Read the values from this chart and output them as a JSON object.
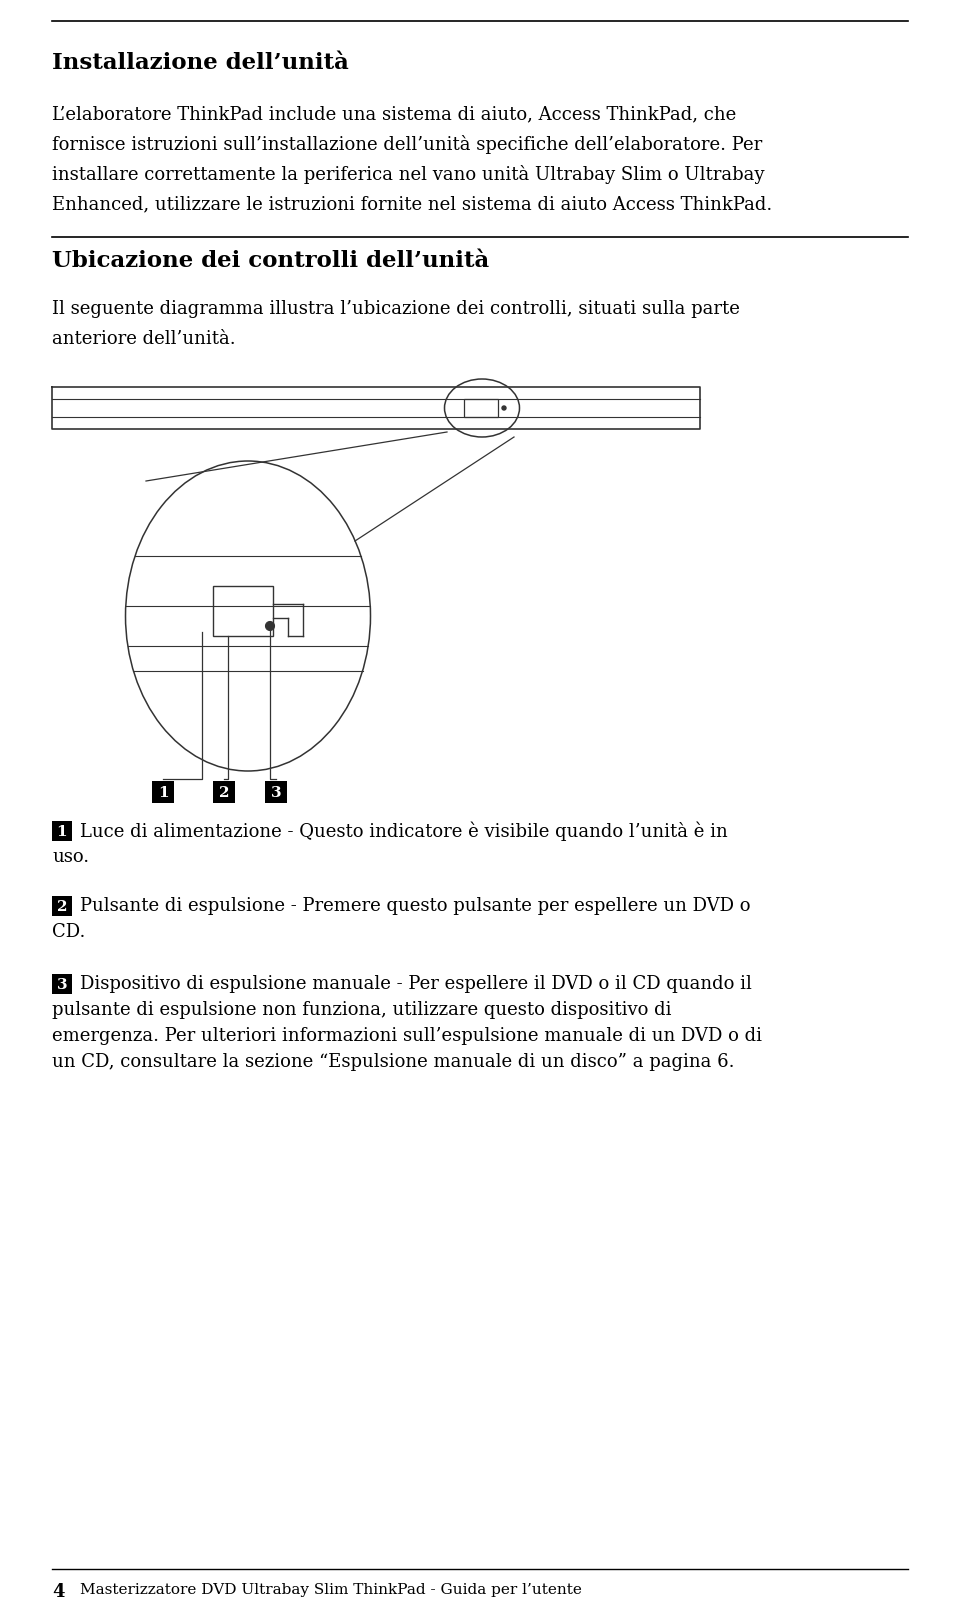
{
  "title1": "Installazione dell’unità",
  "para1_lines": [
    "L’elaboratore ThinkPad include una sistema di aiuto, Access ThinkPad, che",
    "fornisce istruzioni sull’installazione dell’unità specifiche dell’elaboratore. Per",
    "installare correttamente la periferica nel vano unità Ultrabay Slim o Ultrabay",
    "Enhanced, utilizzare le istruzioni fornite nel sistema di aiuto Access ThinkPad."
  ],
  "title2": "Ubicazione dei controlli dell’unità",
  "para2_lines": [
    "Il seguente diagramma illustra l’ubicazione dei controlli, situati sulla parte",
    "anteriore dell’unità."
  ],
  "label1_line1": "Luce di alimentazione - Questo indicatore è visibile quando l’unità è in",
  "label1_line2": "uso.",
  "label2_line1": "Pulsante di espulsione - Premere questo pulsante per espellere un DVD o",
  "label2_line2": "CD.",
  "label3_line1": "Dispositivo di espulsione manuale - Per espellere il DVD o il CD quando il",
  "label3_line2": "pulsante di espulsione non funziona, utilizzare questo dispositivo di",
  "label3_line3": "emergenza. Per ulteriori informazioni sull’espulsione manuale di un DVD o di",
  "label3_line4": "un CD, consultare la sezione “Espulsione manuale di un disco” a pagina 6.",
  "footer_num": "4",
  "footer_text": "Masterizzatore DVD Ultrabay Slim ThinkPad - Guida per l’utente",
  "bg_color": "#ffffff",
  "text_color": "#000000",
  "diagram_color": "#333333"
}
